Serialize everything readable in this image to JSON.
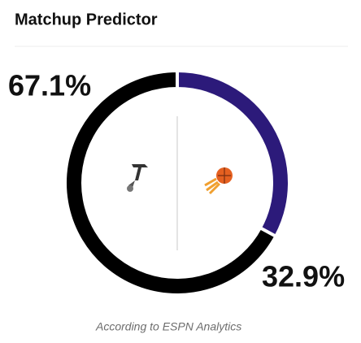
{
  "chart_data": {
    "type": "donut",
    "title": "Matchup Predictor",
    "values": [
      67.1,
      32.9
    ],
    "value_labels": [
      "67.1%",
      "32.9%"
    ],
    "colors": [
      "#000000",
      "#2c1a7a"
    ],
    "note": "According to ESPN Analytics"
  }
}
